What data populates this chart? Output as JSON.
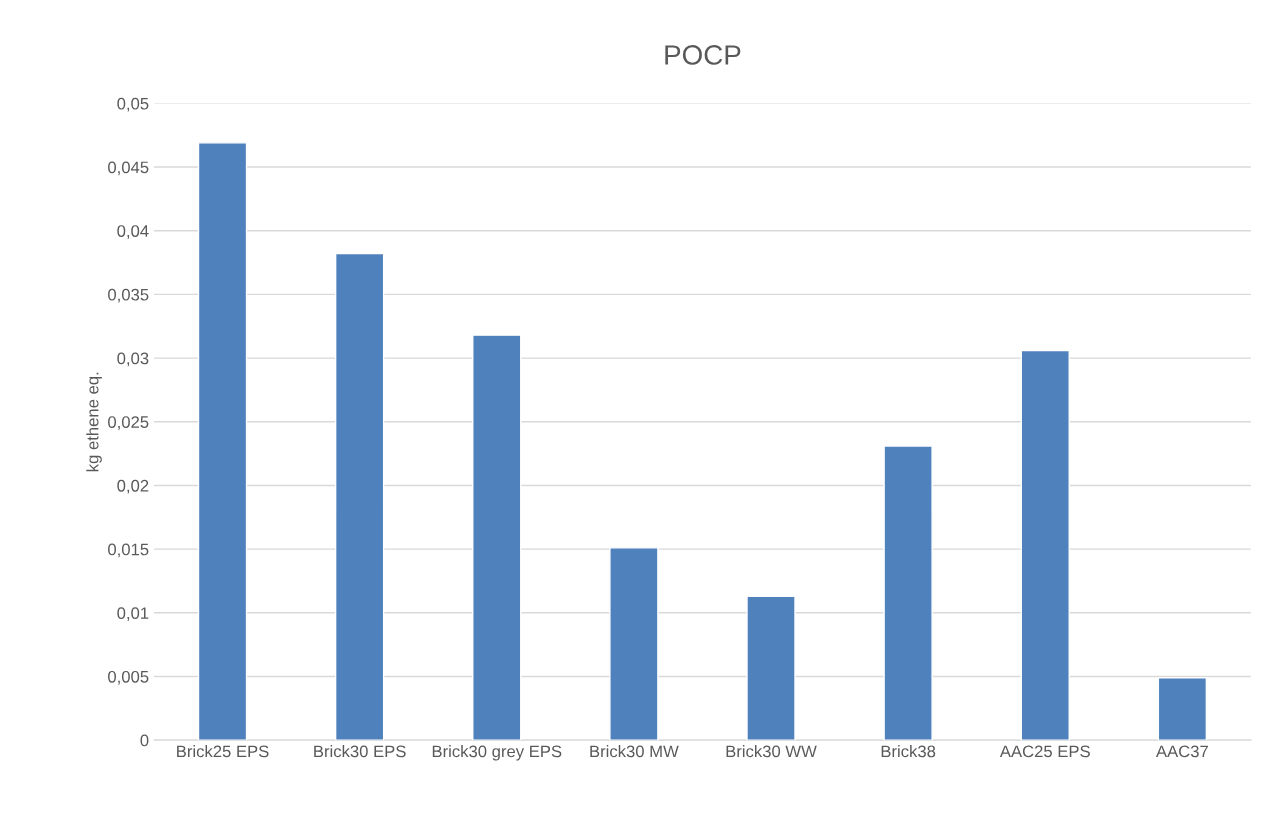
{
  "chart_data": {
    "type": "bar",
    "title": "POCP",
    "ylabel": "kg ethene eq.",
    "categories": [
      "Brick25 EPS",
      "Brick30 EPS",
      "Brick30 grey EPS",
      "Brick30 MW",
      "Brick30 WW",
      "Brick38",
      "AAC25 EPS",
      "AAC37"
    ],
    "values": [
      0.0469,
      0.0382,
      0.0318,
      0.0151,
      0.0113,
      0.0231,
      0.0306,
      0.0049
    ],
    "color": "#4f81bd",
    "ylim": [
      0,
      0.05
    ],
    "yticks": [
      {
        "value": 0,
        "label": "0"
      },
      {
        "value": 0.005,
        "label": "0,005"
      },
      {
        "value": 0.01,
        "label": "0,01"
      },
      {
        "value": 0.015,
        "label": "0,015"
      },
      {
        "value": 0.02,
        "label": "0,02"
      },
      {
        "value": 0.025,
        "label": "0,025"
      },
      {
        "value": 0.03,
        "label": "0,03"
      },
      {
        "value": 0.035,
        "label": "0,035"
      },
      {
        "value": 0.04,
        "label": "0,04"
      },
      {
        "value": 0.045,
        "label": "0,045"
      },
      {
        "value": 0.05,
        "label": "0,05"
      }
    ],
    "grid": "y"
  }
}
